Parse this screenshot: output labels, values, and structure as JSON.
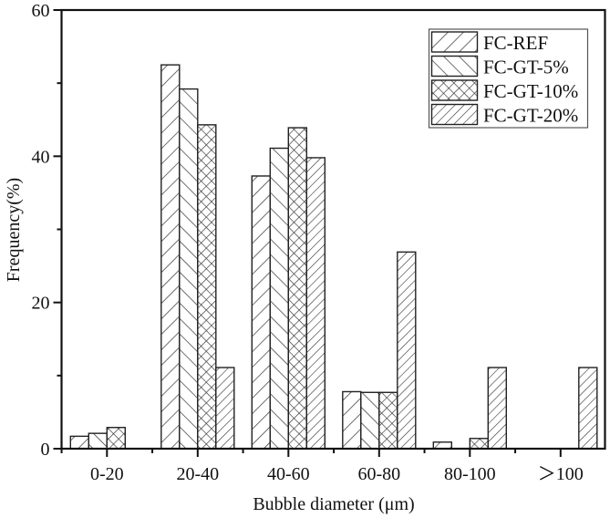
{
  "chart_data": {
    "type": "bar",
    "title": "",
    "xlabel": "Bubble diameter (μm)",
    "ylabel": "Frequency(%)",
    "ylim": [
      0,
      60
    ],
    "yticks": [
      0,
      20,
      40,
      60
    ],
    "y_minor_ticks": [
      10,
      30,
      50
    ],
    "grid": false,
    "legend_position": "upper right",
    "categories": [
      "0-20",
      "20-40",
      "40-60",
      "60-80",
      "80-100",
      "＞100"
    ],
    "series": [
      {
        "name": "FC-REF",
        "pattern": "diagonal-forward-wide",
        "values": [
          1.7,
          52.5,
          37.3,
          7.8,
          0.9,
          0
        ]
      },
      {
        "name": "FC-GT-5%",
        "pattern": "diagonal-backward-wide",
        "values": [
          2.1,
          49.2,
          41.1,
          7.7,
          0,
          0
        ]
      },
      {
        "name": "FC-GT-10%",
        "pattern": "crosshatch",
        "values": [
          2.9,
          44.3,
          43.9,
          7.7,
          1.4,
          0
        ]
      },
      {
        "name": "FC-GT-20%",
        "pattern": "diagonal-forward-dense",
        "values": [
          0,
          11.1,
          39.8,
          26.9,
          11.1,
          11.1
        ]
      }
    ]
  },
  "colors": {
    "axis": "#111111",
    "bar_fill": "#ffffff",
    "hatch": "#333333"
  }
}
